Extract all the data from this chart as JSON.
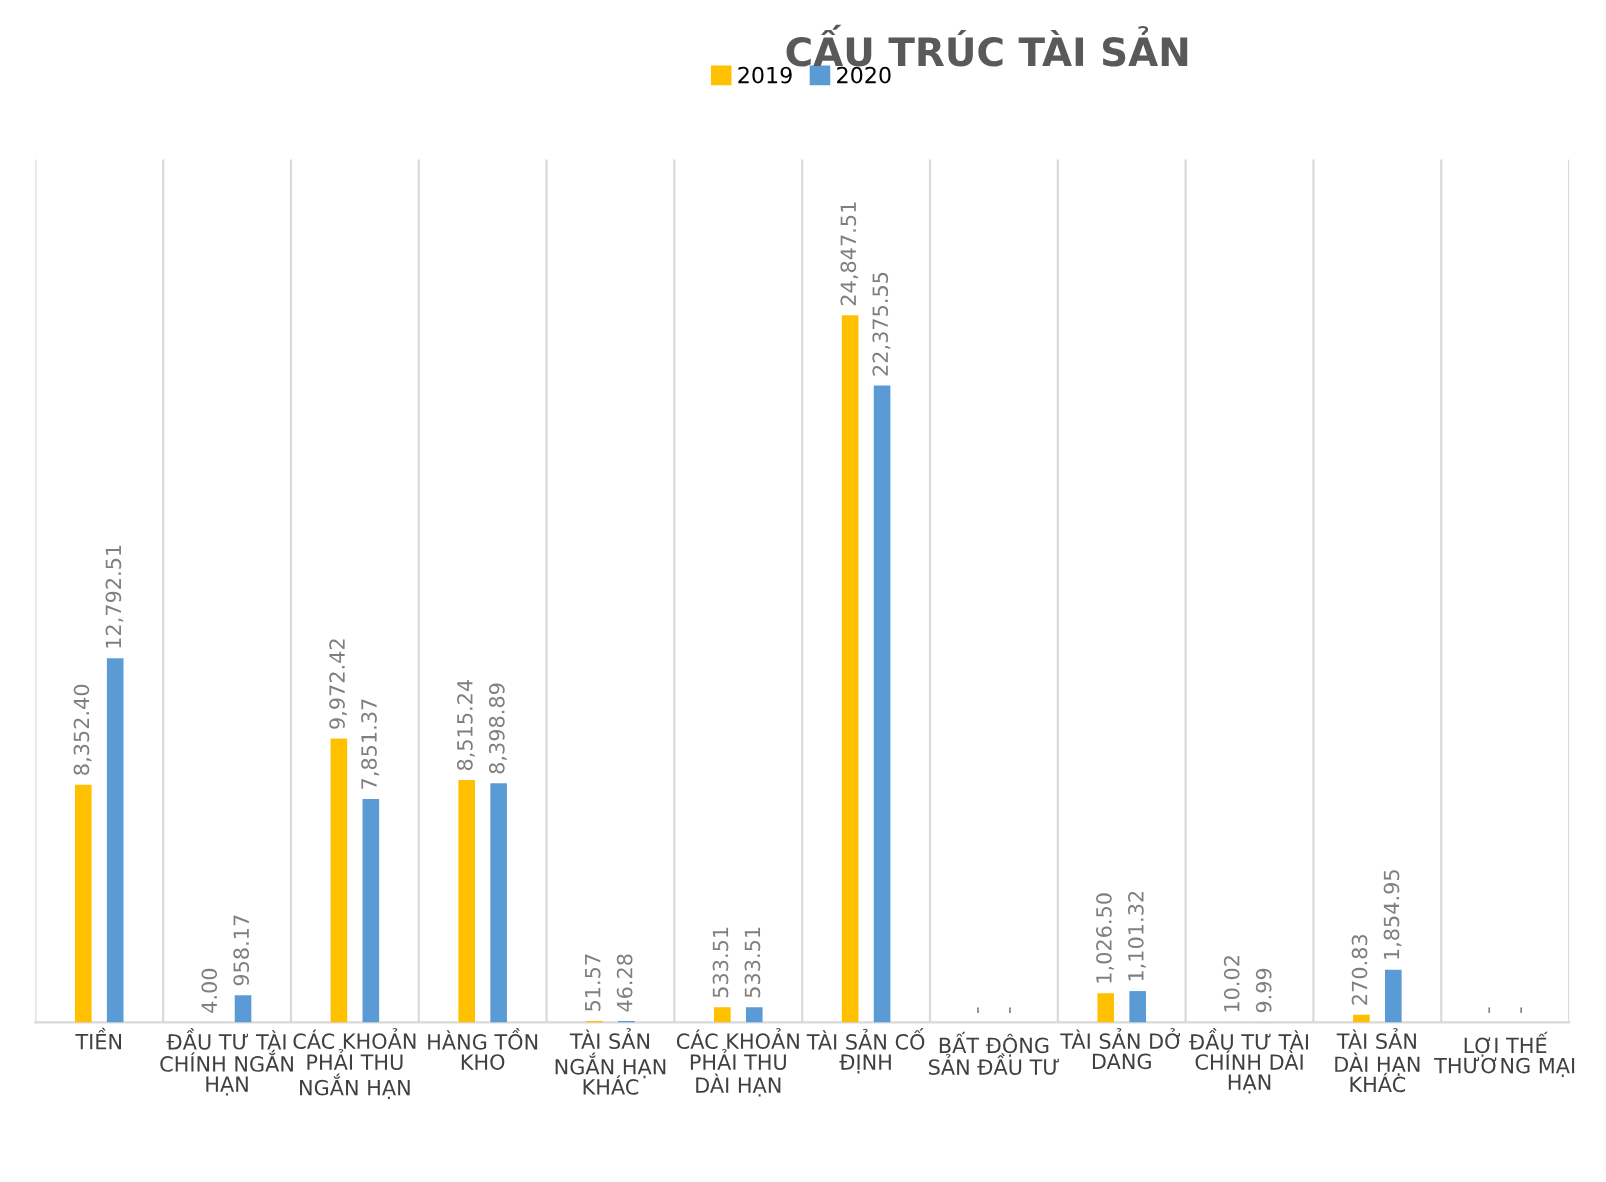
{
  "chart_data": {
    "type": "bar",
    "title": "CẤU TRÚC TÀI SẢN",
    "categories": [
      "TIỀN",
      "ĐẦU TƯ TÀI CHÍNH NGẮN HẠN",
      "CÁC KHOẢN PHẢI THU NGẮN HẠN",
      "HÀNG TỒN KHO",
      "TÀI SẢN NGẮN HẠN KHÁC",
      "CÁC KHOẢN PHẢI THU DÀI HẠN",
      "TÀI SẢN CỐ ĐỊNH",
      "BẤT ĐỘNG SẢN ĐẦU TƯ",
      "TÀI SẢN DỞ DANG",
      "ĐẦU TƯ TÀI CHÍNH DÀI HẠN",
      "TÀI SẢN DÀI HẠN KHÁC",
      "LỢI THẾ THƯƠNG MẠI"
    ],
    "series": [
      {
        "name": "2019",
        "color": "#ffc000",
        "values": [
          8352.4,
          4.0,
          9972.42,
          8515.24,
          51.57,
          533.51,
          24847.51,
          0,
          1026.5,
          10.02,
          270.83,
          0
        ],
        "value_labels": [
          "8,352.40",
          "4.00",
          "9,972.42",
          "8,515.24",
          "51.57",
          "533.51",
          "24,847.51",
          "-",
          "1,026.50",
          "10.02",
          "270.83",
          "-"
        ]
      },
      {
        "name": "2020",
        "color": "#5b9bd5",
        "values": [
          12792.51,
          958.17,
          7851.37,
          8398.89,
          46.28,
          533.51,
          22375.55,
          0,
          1101.32,
          9.99,
          1854.95,
          0
        ],
        "value_labels": [
          "12,792.51",
          "958.17",
          "7,851.37",
          "8,398.89",
          "46.28",
          "533.51",
          "22,375.55",
          "-",
          "1,101.32",
          "9.99",
          "1,854.95",
          "-"
        ]
      }
    ],
    "legend": "top",
    "grid": "x"
  }
}
